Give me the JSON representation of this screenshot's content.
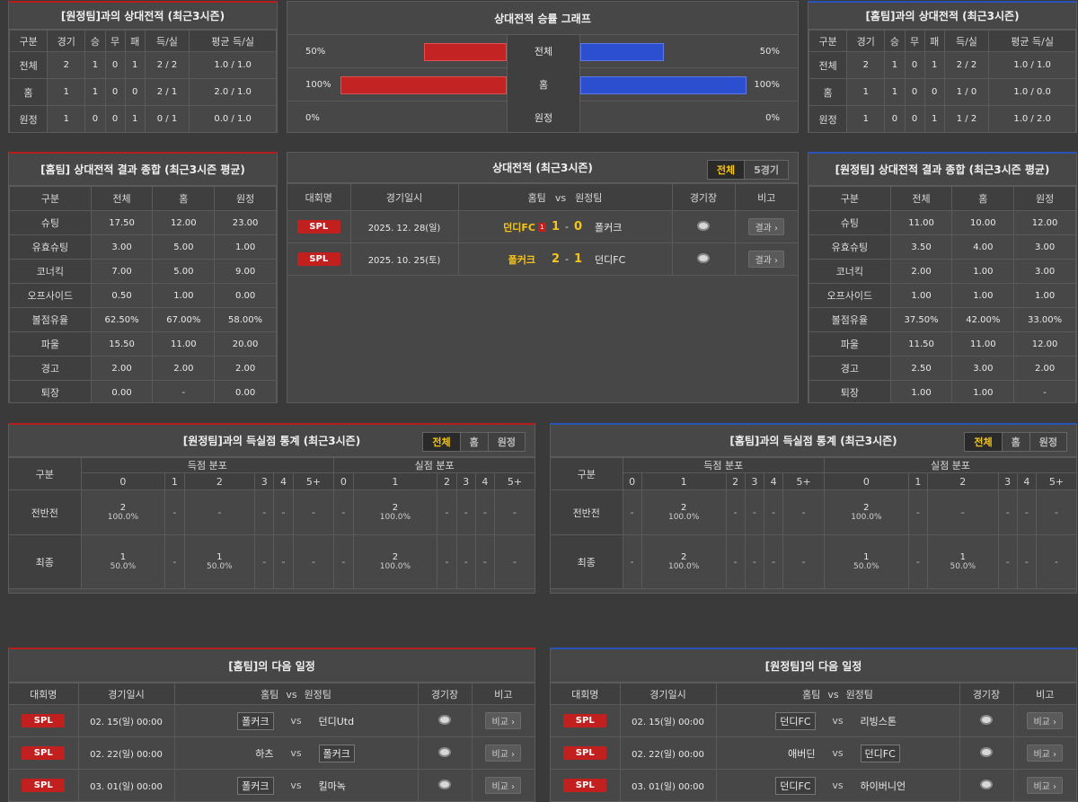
{
  "h2h_away": {
    "title": "[원정팀]과의 상대전적 (최근3시즌)",
    "headers": [
      "구분",
      "경기",
      "승",
      "무",
      "패",
      "득/실",
      "평균 득/실"
    ],
    "rows": [
      [
        "전체",
        "2",
        "1",
        "0",
        "1",
        "2 / 2",
        "1.0 / 1.0"
      ],
      [
        "홈",
        "1",
        "1",
        "0",
        "0",
        "2 / 1",
        "2.0 / 1.0"
      ],
      [
        "원정",
        "1",
        "0",
        "0",
        "1",
        "0 / 1",
        "0.0 / 1.0"
      ]
    ]
  },
  "h2h_home": {
    "title": "[홈팀]과의 상대전적 (최근3시즌)",
    "headers": [
      "구분",
      "경기",
      "승",
      "무",
      "패",
      "득/실",
      "평균 득/실"
    ],
    "rows": [
      [
        "전체",
        "2",
        "1",
        "0",
        "1",
        "2 / 2",
        "1.0 / 1.0"
      ],
      [
        "홈",
        "1",
        "1",
        "0",
        "0",
        "1 / 0",
        "1.0 / 0.0"
      ],
      [
        "원정",
        "1",
        "0",
        "0",
        "1",
        "1 / 2",
        "1.0 / 2.0"
      ]
    ]
  },
  "winrate": {
    "title": "상대전적 승률 그래프",
    "rows": [
      {
        "label": "전체",
        "left": "50%",
        "right": "50%",
        "left_val": 0.5,
        "right_val": 0.5
      },
      {
        "label": "홈",
        "left": "100%",
        "right": "100%",
        "left_val": 1.0,
        "right_val": 1.0
      },
      {
        "label": "원정",
        "left": "0%",
        "right": "0%",
        "left_val": 0.0,
        "right_val": 0.0
      }
    ]
  },
  "summary_home": {
    "title": "[홈팀] 상대전적 결과 종합 (최근3시즌 평균)",
    "headers": [
      "구분",
      "전체",
      "홈",
      "원정"
    ],
    "rows": [
      [
        "슈팅",
        "17.50",
        "12.00",
        "23.00"
      ],
      [
        "유효슈팅",
        "3.00",
        "5.00",
        "1.00"
      ],
      [
        "코너킥",
        "7.00",
        "5.00",
        "9.00"
      ],
      [
        "오프사이드",
        "0.50",
        "1.00",
        "0.00"
      ],
      [
        "볼점유율",
        "62.50%",
        "67.00%",
        "58.00%"
      ],
      [
        "파울",
        "15.50",
        "11.00",
        "20.00"
      ],
      [
        "경고",
        "2.00",
        "2.00",
        "2.00"
      ],
      [
        "퇴장",
        "0.00",
        "-",
        "0.00"
      ]
    ]
  },
  "summary_away": {
    "title": "[원정팀] 상대전적 결과 종합 (최근3시즌 평균)",
    "headers": [
      "구분",
      "전체",
      "홈",
      "원정"
    ],
    "rows": [
      [
        "슈팅",
        "11.00",
        "10.00",
        "12.00"
      ],
      [
        "유효슈팅",
        "3.50",
        "4.00",
        "3.00"
      ],
      [
        "코너킥",
        "2.00",
        "1.00",
        "3.00"
      ],
      [
        "오프사이드",
        "1.00",
        "1.00",
        "1.00"
      ],
      [
        "볼점유율",
        "37.50%",
        "42.00%",
        "33.00%"
      ],
      [
        "파울",
        "11.50",
        "11.00",
        "12.00"
      ],
      [
        "경고",
        "2.50",
        "3.00",
        "2.00"
      ],
      [
        "퇴장",
        "1.00",
        "1.00",
        "-"
      ]
    ]
  },
  "h2h_matches": {
    "title": "상대전적 (최근3시즌)",
    "tabs": [
      "전체",
      "5경기"
    ],
    "headers": {
      "league": "대회명",
      "date": "경기일시",
      "home": "홈팀",
      "vs": "vs",
      "away": "원정팀",
      "venue": "경기장",
      "note": "비고"
    },
    "matches": [
      {
        "league": "SPL",
        "date": "2025. 12. 28(일)",
        "home": "던디FC",
        "red": "1",
        "hs": "1",
        "dash": "-",
        "as": "0",
        "away": "폴커크",
        "btn": "결과 ›"
      },
      {
        "league": "SPL",
        "date": "2025. 10. 25(토)",
        "home": "폴커크",
        "red": "",
        "hs": "2",
        "dash": "-",
        "as": "1",
        "away": "던디FC",
        "btn": "결과 ›"
      }
    ]
  },
  "goals_away": {
    "title": "[원정팀]과의 득실점 통계 (최근3시즌)",
    "tabs": [
      "전체",
      "홈",
      "원정"
    ],
    "col_label": "구분",
    "scored": "득점 분포",
    "conceded": "실점 분포",
    "bins": [
      "0",
      "1",
      "2",
      "3",
      "4",
      "5+"
    ],
    "rows": [
      {
        "label": "전반전",
        "cells": [
          [
            "2",
            "100.0%"
          ],
          [
            "-",
            ""
          ],
          [
            "-",
            ""
          ],
          [
            "-",
            ""
          ],
          [
            "-",
            ""
          ],
          [
            "-",
            ""
          ],
          [
            "-",
            ""
          ],
          [
            "2",
            "100.0%"
          ],
          [
            "-",
            ""
          ],
          [
            "-",
            ""
          ],
          [
            "-",
            ""
          ],
          [
            "-",
            ""
          ]
        ]
      },
      {
        "label": "최종",
        "cells": [
          [
            "1",
            "50.0%"
          ],
          [
            "-",
            ""
          ],
          [
            "1",
            "50.0%"
          ],
          [
            "-",
            ""
          ],
          [
            "-",
            ""
          ],
          [
            "-",
            ""
          ],
          [
            "-",
            ""
          ],
          [
            "2",
            "100.0%"
          ],
          [
            "-",
            ""
          ],
          [
            "-",
            ""
          ],
          [
            "-",
            ""
          ],
          [
            "-",
            ""
          ]
        ]
      }
    ]
  },
  "goals_home": {
    "title": "[홈팀]과의 득실점 통계 (최근3시즌)",
    "tabs": [
      "전체",
      "홈",
      "원정"
    ],
    "col_label": "구분",
    "scored": "득점 분포",
    "conceded": "실점 분포",
    "bins": [
      "0",
      "1",
      "2",
      "3",
      "4",
      "5+"
    ],
    "rows": [
      {
        "label": "전반전",
        "cells": [
          [
            "-",
            ""
          ],
          [
            "2",
            "100.0%"
          ],
          [
            "-",
            ""
          ],
          [
            "-",
            ""
          ],
          [
            "-",
            ""
          ],
          [
            "-",
            ""
          ],
          [
            "2",
            "100.0%"
          ],
          [
            "-",
            ""
          ],
          [
            "-",
            ""
          ],
          [
            "-",
            ""
          ],
          [
            "-",
            ""
          ],
          [
            "-",
            ""
          ]
        ]
      },
      {
        "label": "최종",
        "cells": [
          [
            "-",
            ""
          ],
          [
            "2",
            "100.0%"
          ],
          [
            "-",
            ""
          ],
          [
            "-",
            ""
          ],
          [
            "-",
            ""
          ],
          [
            "-",
            ""
          ],
          [
            "1",
            "50.0%"
          ],
          [
            "-",
            ""
          ],
          [
            "1",
            "50.0%"
          ],
          [
            "-",
            ""
          ],
          [
            "-",
            ""
          ],
          [
            "-",
            ""
          ]
        ]
      }
    ]
  },
  "next_home": {
    "title": "[홈팀]의 다음 일정",
    "headers": {
      "league": "대회명",
      "date": "경기일시",
      "home": "홈팀",
      "vs": "vs",
      "away": "원정팀",
      "venue": "경기장",
      "note": "비고"
    },
    "matches": [
      {
        "league": "SPL",
        "date": "02. 15(일) 00:00",
        "home": "폴커크",
        "vs": "vs",
        "away": "던디Utd",
        "btn": "비교 ›",
        "box": "home"
      },
      {
        "league": "SPL",
        "date": "02. 22(일) 00:00",
        "home": "하츠",
        "vs": "vs",
        "away": "폴커크",
        "btn": "비교 ›",
        "box": "away"
      },
      {
        "league": "SPL",
        "date": "03. 01(일) 00:00",
        "home": "폴커크",
        "vs": "vs",
        "away": "킬마녹",
        "btn": "비교 ›",
        "box": "home"
      }
    ]
  },
  "next_away": {
    "title": "[원정팀]의 다음 일정",
    "headers": {
      "league": "대회명",
      "date": "경기일시",
      "home": "홈팀",
      "vs": "vs",
      "away": "원정팀",
      "venue": "경기장",
      "note": "비고"
    },
    "matches": [
      {
        "league": "SPL",
        "date": "02. 15(일) 00:00",
        "home": "던디FC",
        "vs": "vs",
        "away": "리빙스톤",
        "btn": "비교 ›",
        "box": "home"
      },
      {
        "league": "SPL",
        "date": "02. 22(일) 00:00",
        "home": "애버딘",
        "vs": "vs",
        "away": "던디FC",
        "btn": "비교 ›",
        "box": "away"
      },
      {
        "league": "SPL",
        "date": "03. 01(일) 00:00",
        "home": "던디FC",
        "vs": "vs",
        "away": "하이버니언",
        "btn": "비교 ›",
        "box": "home"
      }
    ]
  },
  "colors": {
    "home_accent": "#b51e1e",
    "away_accent": "#2a53b8",
    "highlight": "#f5c518"
  }
}
